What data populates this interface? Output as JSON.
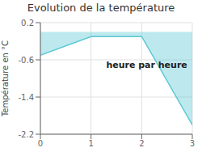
{
  "chart_data": {
    "type": "area",
    "title": "Evolution de la température",
    "ylabel": "Température en °C",
    "annotation": "heure par heure",
    "x": [
      0,
      1,
      2,
      3
    ],
    "values": [
      -0.5,
      -0.1,
      -0.1,
      -2.0
    ],
    "color": "#5bc8d4",
    "xlim": [
      0,
      3
    ],
    "ylim": [
      -2.2,
      0.2
    ],
    "xticks": [
      0,
      1,
      2,
      3
    ],
    "yticks": [
      0.2,
      -0.6,
      -1.4,
      -2.2
    ],
    "grid": true
  }
}
